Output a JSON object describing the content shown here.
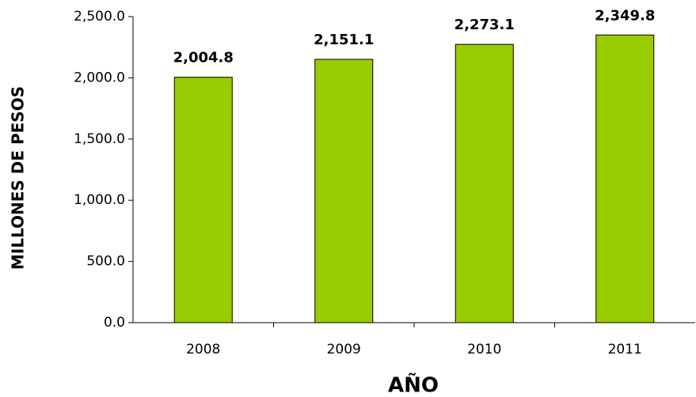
{
  "chart_data": {
    "type": "bar",
    "x_label": "AÑO",
    "y_label": "MILLONES DE PESOS",
    "categories": [
      "2008",
      "2009",
      "2010",
      "2011"
    ],
    "values": [
      2004.8,
      2151.1,
      2273.1,
      2349.8
    ],
    "value_labels": [
      "2,004.8",
      "2,151.1",
      "2,273.1",
      "2,349.8"
    ],
    "color": "#99cc00",
    "ylim": [
      0,
      2500
    ],
    "yticks": [
      {
        "value": 0,
        "label": "0.0"
      },
      {
        "value": 500,
        "label": "500.0"
      },
      {
        "value": 1000,
        "label": "1,000.0"
      },
      {
        "value": 1500,
        "label": "1,500.0"
      },
      {
        "value": 2000,
        "label": "2,000.0"
      },
      {
        "value": 2500,
        "label": "2,500.0"
      }
    ],
    "grid": false
  }
}
